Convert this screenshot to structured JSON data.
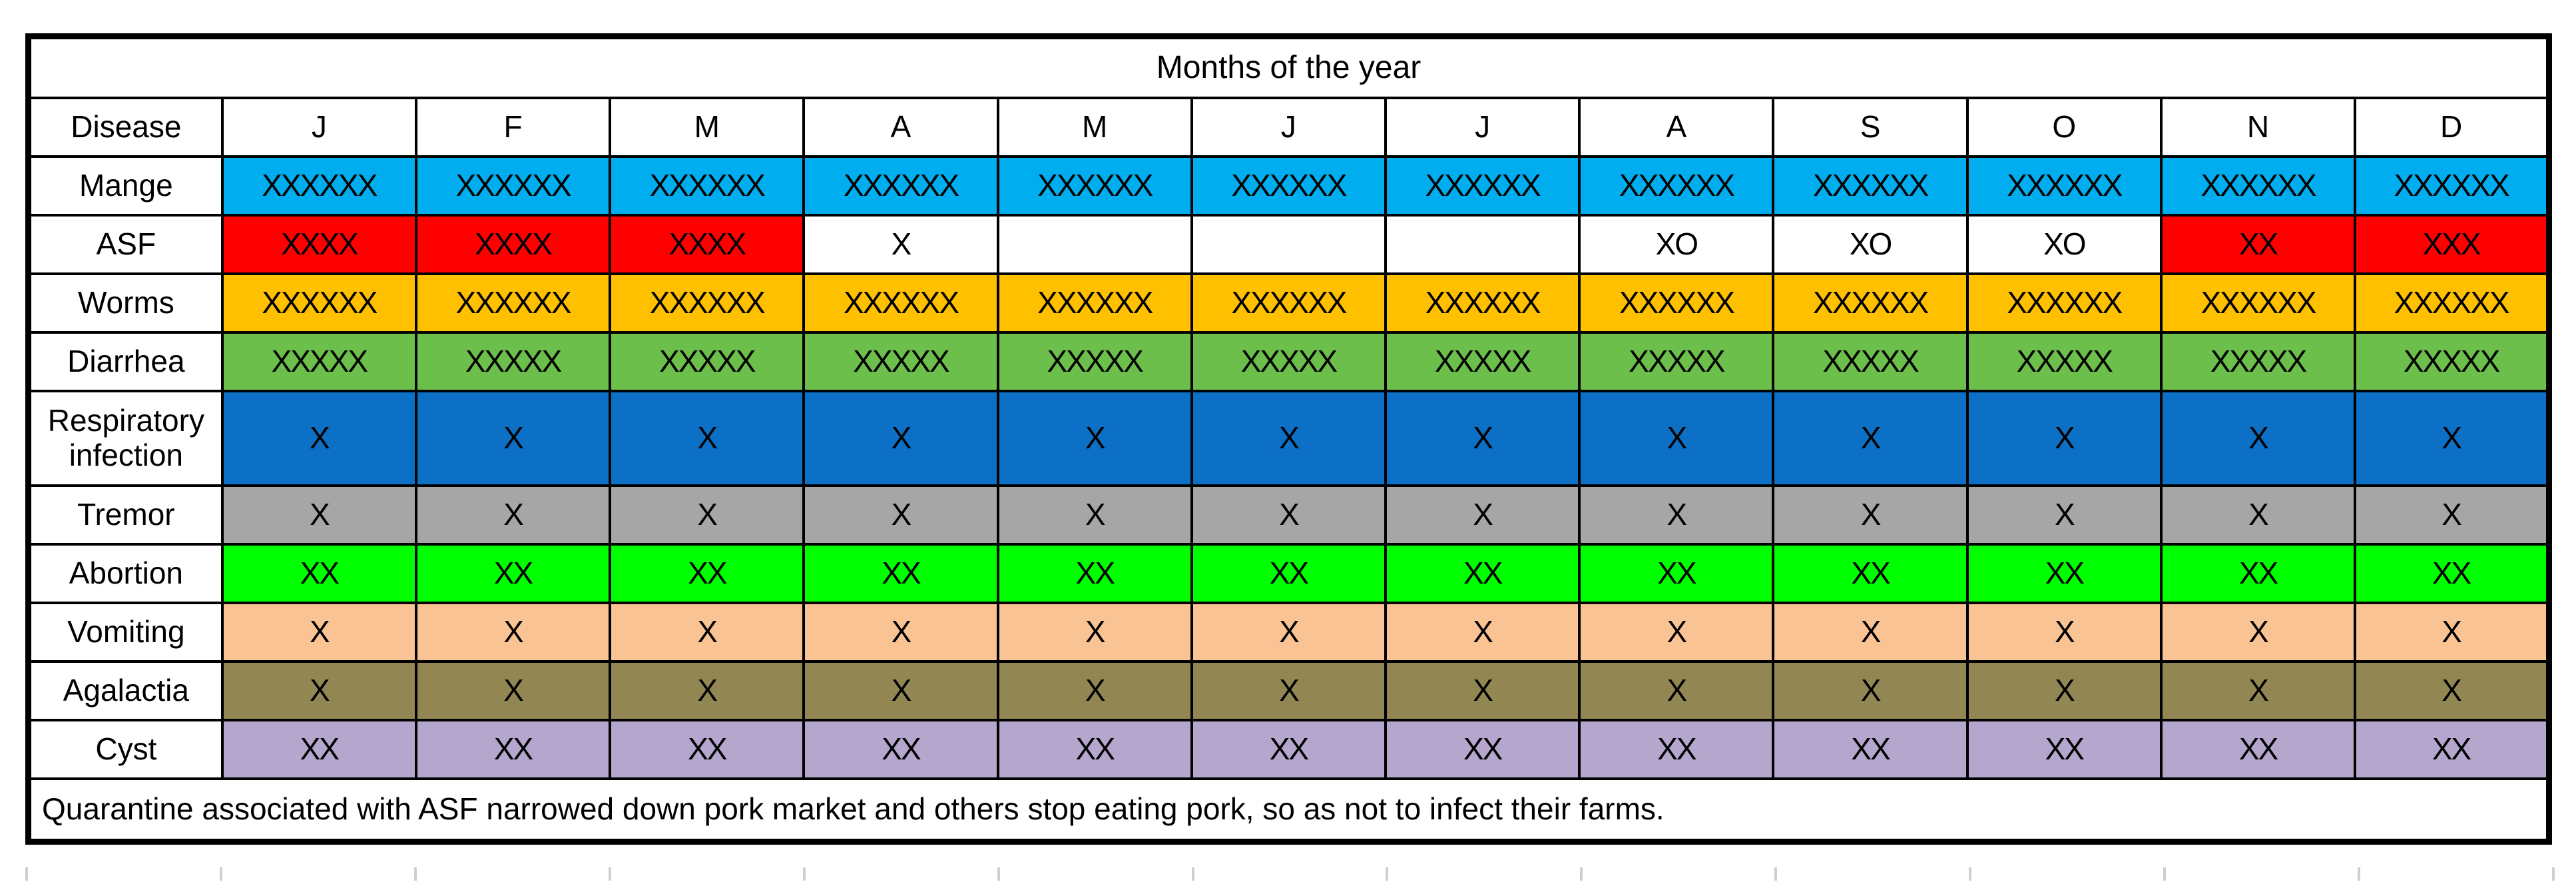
{
  "page": {
    "background": "#ffffff"
  },
  "chart_data": {
    "type": "table",
    "title": "Months of the year",
    "columns": [
      "Disease",
      "J",
      "F",
      "M",
      "A",
      "M",
      "J",
      "J",
      "A",
      "S",
      "O",
      "N",
      "D"
    ],
    "rows": [
      {
        "disease": "Mange",
        "color": "#00AEEF",
        "cells": [
          {
            "text": "XXXXXX",
            "filled": true
          },
          {
            "text": "XXXXXX",
            "filled": true
          },
          {
            "text": "XXXXXX",
            "filled": true
          },
          {
            "text": "XXXXXX",
            "filled": true
          },
          {
            "text": "XXXXXX",
            "filled": true
          },
          {
            "text": "XXXXXX",
            "filled": true
          },
          {
            "text": "XXXXXX",
            "filled": true
          },
          {
            "text": "XXXXXX",
            "filled": true
          },
          {
            "text": "XXXXXX",
            "filled": true
          },
          {
            "text": "XXXXXX",
            "filled": true
          },
          {
            "text": "XXXXXX",
            "filled": true
          },
          {
            "text": "XXXXXX",
            "filled": true
          }
        ]
      },
      {
        "disease": "ASF",
        "color": "#FF0000",
        "cells": [
          {
            "text": "XXXX",
            "filled": true
          },
          {
            "text": "XXXX",
            "filled": true
          },
          {
            "text": "XXXX",
            "filled": true
          },
          {
            "text": "X",
            "filled": false
          },
          {
            "text": "",
            "filled": false
          },
          {
            "text": "",
            "filled": false
          },
          {
            "text": "",
            "filled": false
          },
          {
            "text": "XO",
            "filled": false
          },
          {
            "text": "XO",
            "filled": false
          },
          {
            "text": "XO",
            "filled": false
          },
          {
            "text": "XX",
            "filled": true
          },
          {
            "text": "XXX",
            "filled": true
          }
        ]
      },
      {
        "disease": "Worms",
        "color": "#FFC000",
        "cells": [
          {
            "text": "XXXXXX",
            "filled": true
          },
          {
            "text": "XXXXXX",
            "filled": true
          },
          {
            "text": "XXXXXX",
            "filled": true
          },
          {
            "text": "XXXXXX",
            "filled": true
          },
          {
            "text": "XXXXXX",
            "filled": true
          },
          {
            "text": "XXXXXX",
            "filled": true
          },
          {
            "text": "XXXXXX",
            "filled": true
          },
          {
            "text": "XXXXXX",
            "filled": true
          },
          {
            "text": "XXXXXX",
            "filled": true
          },
          {
            "text": "XXXXXX",
            "filled": true
          },
          {
            "text": "XXXXXX",
            "filled": true
          },
          {
            "text": "XXXXXX",
            "filled": true
          }
        ]
      },
      {
        "disease": "Diarrhea",
        "color": "#6CBF4A",
        "cells": [
          {
            "text": "XXXXX",
            "filled": true
          },
          {
            "text": "XXXXX",
            "filled": true
          },
          {
            "text": "XXXXX",
            "filled": true
          },
          {
            "text": "XXXXX",
            "filled": true
          },
          {
            "text": "XXXXX",
            "filled": true
          },
          {
            "text": "XXXXX",
            "filled": true
          },
          {
            "text": "XXXXX",
            "filled": true
          },
          {
            "text": "XXXXX",
            "filled": true
          },
          {
            "text": "XXXXX",
            "filled": true
          },
          {
            "text": "XXXXX",
            "filled": true
          },
          {
            "text": "XXXXX",
            "filled": true
          },
          {
            "text": "XXXXX",
            "filled": true
          }
        ]
      },
      {
        "disease": "Respiratory infection",
        "color": "#0C70C6",
        "cells": [
          {
            "text": "X",
            "filled": true
          },
          {
            "text": "X",
            "filled": true
          },
          {
            "text": "X",
            "filled": true
          },
          {
            "text": "X",
            "filled": true
          },
          {
            "text": "X",
            "filled": true
          },
          {
            "text": "X",
            "filled": true
          },
          {
            "text": "X",
            "filled": true
          },
          {
            "text": "X",
            "filled": true
          },
          {
            "text": "X",
            "filled": true
          },
          {
            "text": "X",
            "filled": true
          },
          {
            "text": "X",
            "filled": true
          },
          {
            "text": "X",
            "filled": true
          }
        ]
      },
      {
        "disease": "Tremor",
        "color": "#A6A6A6",
        "cells": [
          {
            "text": "X",
            "filled": true
          },
          {
            "text": "X",
            "filled": true
          },
          {
            "text": "X",
            "filled": true
          },
          {
            "text": "X",
            "filled": true
          },
          {
            "text": "X",
            "filled": true
          },
          {
            "text": "X",
            "filled": true
          },
          {
            "text": "X",
            "filled": true
          },
          {
            "text": "X",
            "filled": true
          },
          {
            "text": "X",
            "filled": true
          },
          {
            "text": "X",
            "filled": true
          },
          {
            "text": "X",
            "filled": true
          },
          {
            "text": "X",
            "filled": true
          }
        ]
      },
      {
        "disease": "Abortion",
        "color": "#00FF00",
        "cells": [
          {
            "text": "XX",
            "filled": true
          },
          {
            "text": "XX",
            "filled": true
          },
          {
            "text": "XX",
            "filled": true
          },
          {
            "text": "XX",
            "filled": true
          },
          {
            "text": "XX",
            "filled": true
          },
          {
            "text": "XX",
            "filled": true
          },
          {
            "text": "XX",
            "filled": true
          },
          {
            "text": "XX",
            "filled": true
          },
          {
            "text": "XX",
            "filled": true
          },
          {
            "text": "XX",
            "filled": true
          },
          {
            "text": "XX",
            "filled": true
          },
          {
            "text": "XX",
            "filled": true
          }
        ]
      },
      {
        "disease": "Vomiting",
        "color": "#FAC394",
        "cells": [
          {
            "text": "X",
            "filled": true
          },
          {
            "text": "X",
            "filled": true
          },
          {
            "text": "X",
            "filled": true
          },
          {
            "text": "X",
            "filled": true
          },
          {
            "text": "X",
            "filled": true
          },
          {
            "text": "X",
            "filled": true
          },
          {
            "text": "X",
            "filled": true
          },
          {
            "text": "X",
            "filled": true
          },
          {
            "text": "X",
            "filled": true
          },
          {
            "text": "X",
            "filled": true
          },
          {
            "text": "X",
            "filled": true
          },
          {
            "text": "X",
            "filled": true
          }
        ]
      },
      {
        "disease": "Agalactia",
        "color": "#928753",
        "cells": [
          {
            "text": "X",
            "filled": true
          },
          {
            "text": "X",
            "filled": true
          },
          {
            "text": "X",
            "filled": true
          },
          {
            "text": "X",
            "filled": true
          },
          {
            "text": "X",
            "filled": true
          },
          {
            "text": "X",
            "filled": true
          },
          {
            "text": "X",
            "filled": true
          },
          {
            "text": "X",
            "filled": true
          },
          {
            "text": "X",
            "filled": true
          },
          {
            "text": "X",
            "filled": true
          },
          {
            "text": "X",
            "filled": true
          },
          {
            "text": "X",
            "filled": true
          }
        ]
      },
      {
        "disease": "Cyst",
        "color": "#B4A6CD",
        "cells": [
          {
            "text": "XX",
            "filled": true
          },
          {
            "text": "XX",
            "filled": true
          },
          {
            "text": "XX",
            "filled": true
          },
          {
            "text": "XX",
            "filled": true
          },
          {
            "text": "XX",
            "filled": true
          },
          {
            "text": "XX",
            "filled": true
          },
          {
            "text": "XX",
            "filled": true
          },
          {
            "text": "XX",
            "filled": true
          },
          {
            "text": "XX",
            "filled": true
          },
          {
            "text": "XX",
            "filled": true
          },
          {
            "text": "XX",
            "filled": true
          },
          {
            "text": "XX",
            "filled": true
          }
        ]
      }
    ],
    "footnote": "Quarantine associated with ASF narrowed down pork market and others stop eating pork, so as not to infect their farms.",
    "border_color": "#000000",
    "layout_hints": {
      "grid": "on",
      "legend": "none",
      "x_axis": "months J-D",
      "y_axis": "diseases"
    }
  }
}
